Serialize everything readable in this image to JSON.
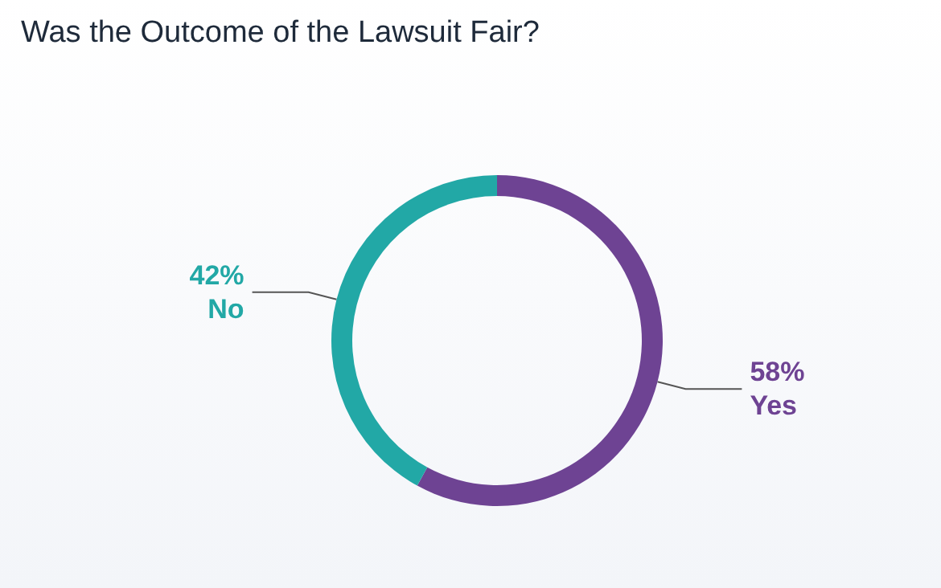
{
  "chart_data": {
    "type": "donut",
    "title": "Was the Outcome of the Lawsuit Fair?",
    "categories": [
      "Yes",
      "No"
    ],
    "values": [
      58,
      42
    ],
    "colors": [
      "#6e4393",
      "#22a8a6"
    ],
    "value_labels": [
      "58%",
      "42%"
    ],
    "legend": false
  }
}
